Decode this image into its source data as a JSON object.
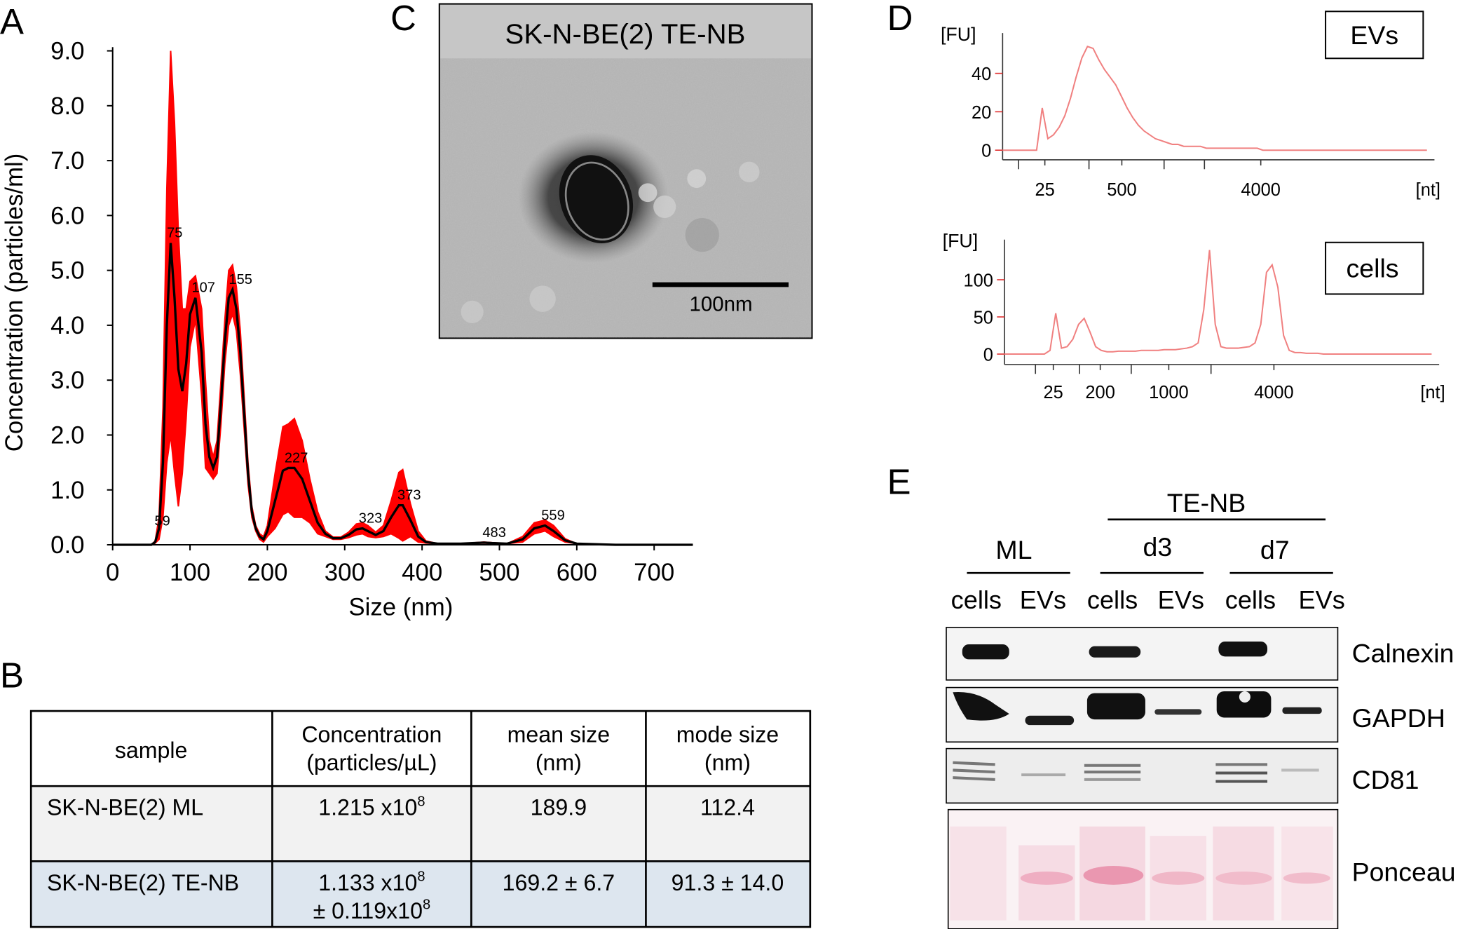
{
  "panel_labels": [
    "A",
    "B",
    "C",
    "D",
    "E"
  ],
  "chart_data": [
    {
      "type": "line",
      "xlabel": "Size (nm)",
      "ylabel": "Concentration (particles/ml)",
      "x": [
        0,
        50,
        55,
        60,
        65,
        70,
        75,
        80,
        85,
        90,
        95,
        100,
        107,
        115,
        120,
        125,
        130,
        135,
        140,
        145,
        150,
        155,
        160,
        165,
        170,
        175,
        180,
        185,
        190,
        195,
        200,
        210,
        220,
        227,
        235,
        245,
        255,
        265,
        275,
        285,
        295,
        305,
        315,
        323,
        330,
        340,
        350,
        360,
        370,
        375,
        385,
        395,
        405,
        420,
        450,
        480,
        490,
        510,
        530,
        545,
        559,
        570,
        585,
        600,
        650,
        750
      ],
      "series": [
        {
          "color": "#000000",
          "error_color": "#ff0000",
          "values": [
            0,
            0,
            0.05,
            0.3,
            1.5,
            4.0,
            5.5,
            4.5,
            3.2,
            2.8,
            3.3,
            4.2,
            4.5,
            3.5,
            2.2,
            1.6,
            1.4,
            1.6,
            2.6,
            3.7,
            4.5,
            4.65,
            4.3,
            3.5,
            2.4,
            1.3,
            0.6,
            0.3,
            0.15,
            0.1,
            0.25,
            0.8,
            1.35,
            1.4,
            1.4,
            1.2,
            0.8,
            0.4,
            0.2,
            0.12,
            0.12,
            0.18,
            0.28,
            0.3,
            0.25,
            0.18,
            0.25,
            0.5,
            0.72,
            0.72,
            0.45,
            0.15,
            0.05,
            0.02,
            0.02,
            0.04,
            0.03,
            0.02,
            0.1,
            0.3,
            0.35,
            0.25,
            0.08,
            0.02,
            0,
            0
          ],
          "errors": [
            0,
            0,
            0.02,
            0.2,
            1.0,
            2.5,
            3.5,
            3.2,
            2.5,
            1.5,
            1.0,
            0.6,
            0.4,
            0.8,
            0.8,
            0.3,
            0.2,
            0.3,
            0.4,
            0.4,
            0.5,
            0.45,
            0.4,
            0.4,
            0.3,
            0.2,
            0.1,
            0.05,
            0.05,
            0.05,
            0.1,
            0.5,
            0.8,
            0.8,
            0.9,
            0.7,
            0.4,
            0.2,
            0.05,
            0.02,
            0.02,
            0.05,
            0.1,
            0.1,
            0.1,
            0.05,
            0.1,
            0.3,
            0.6,
            0.65,
            0.3,
            0.1,
            0.02,
            0,
            0,
            0.01,
            0.01,
            0,
            0.05,
            0.1,
            0.1,
            0.1,
            0.03,
            0,
            0,
            0
          ]
        }
      ],
      "peak_labels": [
        59,
        75,
        107,
        155,
        227,
        323,
        373,
        483,
        559
      ],
      "peak_color": "#3333ff",
      "xlim": [
        0,
        750
      ],
      "xticks": [
        0,
        100,
        200,
        300,
        400,
        500,
        600,
        700
      ],
      "ylim": [
        0,
        9.0
      ],
      "yticks": [
        {
          "value": 0,
          "label": "0.0"
        },
        {
          "value": 1,
          "label": "1.0"
        },
        {
          "value": 2,
          "label": "2.0"
        },
        {
          "value": 3,
          "label": "3.0"
        },
        {
          "value": 4,
          "label": "4.0"
        },
        {
          "value": 5,
          "label": "5.0"
        },
        {
          "value": 6,
          "label": "6.0"
        },
        {
          "value": 7,
          "label": "7.0"
        },
        {
          "value": 8,
          "label": "8.0"
        },
        {
          "value": 9,
          "label": "9.0"
        }
      ]
    },
    {
      "type": "trace",
      "box_label": "EVs",
      "y_unit": "[FU]",
      "x_unit": "[nt]",
      "color": "#f08080",
      "values": [
        0,
        0,
        0,
        0,
        0,
        0,
        0,
        22,
        6,
        8,
        12,
        18,
        27,
        38,
        48,
        54,
        53,
        47,
        42,
        38,
        34,
        28,
        22,
        17,
        13,
        10,
        8,
        6,
        5,
        4,
        3,
        3,
        2,
        2,
        2,
        2,
        1,
        1,
        1,
        1,
        1,
        1,
        1,
        1,
        1,
        1,
        0,
        0,
        0,
        0,
        0,
        0,
        0,
        0,
        0,
        0,
        0,
        0,
        0,
        0,
        0,
        0,
        0,
        0,
        0,
        0,
        0,
        0,
        0,
        0,
        0,
        0,
        0,
        0,
        0,
        0
      ],
      "ylim": [
        -5,
        61
      ],
      "yticks": [
        0,
        20,
        40
      ],
      "xticks": [
        25,
        500,
        4000
      ]
    },
    {
      "type": "trace",
      "box_label": "cells",
      "y_unit": "[FU]",
      "x_unit": "[nt]",
      "color": "#f08080",
      "values": [
        0,
        0,
        0,
        0,
        0,
        0,
        0,
        0,
        5,
        55,
        8,
        10,
        20,
        40,
        48,
        30,
        10,
        5,
        3,
        3,
        4,
        4,
        4,
        4,
        5,
        5,
        5,
        5,
        6,
        6,
        6,
        7,
        8,
        10,
        15,
        60,
        140,
        40,
        10,
        8,
        8,
        8,
        9,
        10,
        15,
        40,
        110,
        120,
        90,
        25,
        5,
        2,
        2,
        1,
        1,
        1,
        0,
        0,
        0,
        0,
        0,
        0,
        0,
        0,
        0,
        0,
        0,
        0,
        0,
        0,
        0,
        0,
        0,
        0,
        0,
        0
      ],
      "ylim": [
        -14,
        154
      ],
      "yticks": [
        0,
        50,
        100
      ],
      "xticks": [
        25,
        200,
        1000,
        4000
      ]
    }
  ],
  "table": {
    "header": [
      "sample",
      "Concentration\n(particles/µL)",
      "mean size\n(nm)",
      "mode size\n(nm)"
    ],
    "rows": [
      [
        "SK-N-BE(2) ML",
        [
          {
            "text": "1.215 x10",
            "sup": "8"
          }
        ],
        "189.9",
        "112.4"
      ],
      [
        "SK-N-BE(2) TE-NB",
        [
          {
            "text": "1.133 x10",
            "sup": "8"
          },
          {
            "text": "± 0.119x10",
            "sup": "8"
          }
        ],
        "169.2 ± 6.7",
        "91.3 ± 14.0"
      ]
    ]
  },
  "micrograph": {
    "title": "SK-N-BE(2) TE-NB",
    "scale_bar": "100nm"
  },
  "blot": {
    "group": "TE-NB",
    "conditions": [
      "ML",
      "d3",
      "d7"
    ],
    "lanes": [
      "cells",
      "EVs",
      "cells",
      "EVs",
      "cells",
      "EVs"
    ],
    "rows": [
      "Calnexin",
      "GAPDH",
      "CD81",
      "Ponceau"
    ]
  }
}
